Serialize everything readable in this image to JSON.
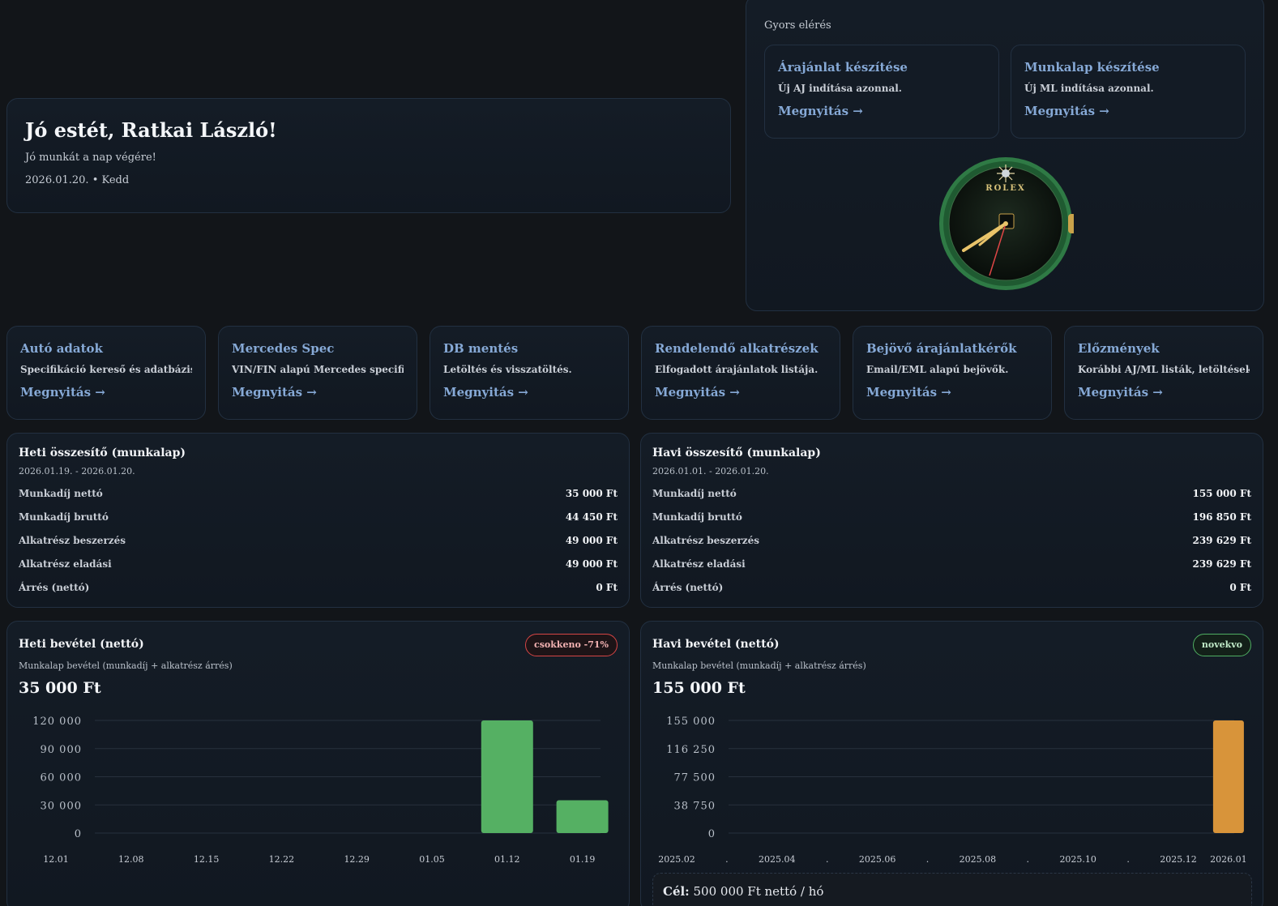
{
  "greeting": {
    "title": "Jó estét, Ratkai László!",
    "subtitle": "Jó munkát a nap végére!",
    "date": "2026.01.20. • Kedd"
  },
  "quick_access": {
    "title": "Gyors elérés",
    "items": [
      {
        "title": "Árajánlat készítése",
        "desc": "Új AJ indítása azonnal.",
        "link": "Megnyitás →"
      },
      {
        "title": "Munkalap készítése",
        "desc": "Új ML indítása azonnal.",
        "link": "Megnyitás →"
      }
    ],
    "clock_brand": "ROLEX"
  },
  "tiles": [
    {
      "title": "Autó adatok",
      "desc": "Specifikáció kereső és adatbázis.",
      "link": "Megnyitás →"
    },
    {
      "title": "Mercedes Spec",
      "desc": "VIN/FIN alapú Mercedes specifikáció.",
      "link": "Megnyitás →"
    },
    {
      "title": "DB mentés",
      "desc": "Letöltés és visszatöltés.",
      "link": "Megnyitás →"
    },
    {
      "title": "Rendelendő alkatrészek",
      "desc": "Elfogadott árajánlatok listája.",
      "link": "Megnyitás →"
    },
    {
      "title": "Bejövő árajánlatkérők",
      "desc": "Email/EML alapú bejövők.",
      "link": "Megnyitás →"
    },
    {
      "title": "Előzmények",
      "desc": "Korábbi AJ/ML listák, letöltések.",
      "link": "Megnyitás →"
    }
  ],
  "weekly_summary": {
    "title": "Heti összesítő (munkalap)",
    "range": "2026.01.19. - 2026.01.20.",
    "rows": [
      {
        "label": "Munkadíj nettó",
        "value": "35 000 Ft"
      },
      {
        "label": "Munkadíj bruttó",
        "value": "44 450 Ft"
      },
      {
        "label": "Alkatrész beszerzés",
        "value": "49 000 Ft"
      },
      {
        "label": "Alkatrész eladási",
        "value": "49 000 Ft"
      },
      {
        "label": "Árrés (nettó)",
        "value": "0 Ft"
      }
    ]
  },
  "monthly_summary": {
    "title": "Havi összesítő (munkalap)",
    "range": "2026.01.01. - 2026.01.20.",
    "rows": [
      {
        "label": "Munkadíj nettó",
        "value": "155 000 Ft"
      },
      {
        "label": "Munkadíj bruttó",
        "value": "196 850 Ft"
      },
      {
        "label": "Alkatrész beszerzés",
        "value": "239 629 Ft"
      },
      {
        "label": "Alkatrész eladási",
        "value": "239 629 Ft"
      },
      {
        "label": "Árrés (nettó)",
        "value": "0 Ft"
      }
    ]
  },
  "weekly_revenue": {
    "title": "Heti bevétel (nettó)",
    "subtitle": "Munkalap bevétel (munkadíj + alkatrész árrés)",
    "total": "35 000 Ft",
    "badge": "csokkeno -71%",
    "badge_color": "#d64545"
  },
  "monthly_revenue": {
    "title": "Havi bevétel (nettó)",
    "subtitle": "Munkalap bevétel (munkadíj + alkatrész árrés)",
    "total": "155 000 Ft",
    "badge": "novekvo",
    "badge_color": "#4fae62",
    "goal_label": "Cél:",
    "goal_text": "500 000 Ft nettó / hó"
  },
  "chart_data": [
    {
      "type": "bar",
      "categories": [
        "12.01",
        "12.08",
        "12.15",
        "12.22",
        "12.29",
        "01.05",
        "01.12",
        "01.19"
      ],
      "values": [
        0,
        0,
        0,
        0,
        0,
        0,
        120000,
        35000
      ],
      "ylim": [
        0,
        120000
      ],
      "yticks": [
        "0",
        "30 000",
        "60 000",
        "90 000",
        "120 000"
      ],
      "color": "#55b063",
      "grid": true
    },
    {
      "type": "bar",
      "categories": [
        "2025.02",
        ".",
        "2025.04",
        ".",
        "2025.06",
        ".",
        "2025.08",
        ".",
        "2025.10",
        ".",
        "2025.12",
        "2026.01"
      ],
      "values": [
        0,
        0,
        0,
        0,
        0,
        0,
        0,
        0,
        0,
        0,
        0,
        155000
      ],
      "ylim": [
        0,
        155000
      ],
      "yticks": [
        "0",
        "38 750",
        "77 500",
        "116 250",
        "155 000"
      ],
      "color": "#d8943a",
      "grid": true
    }
  ]
}
